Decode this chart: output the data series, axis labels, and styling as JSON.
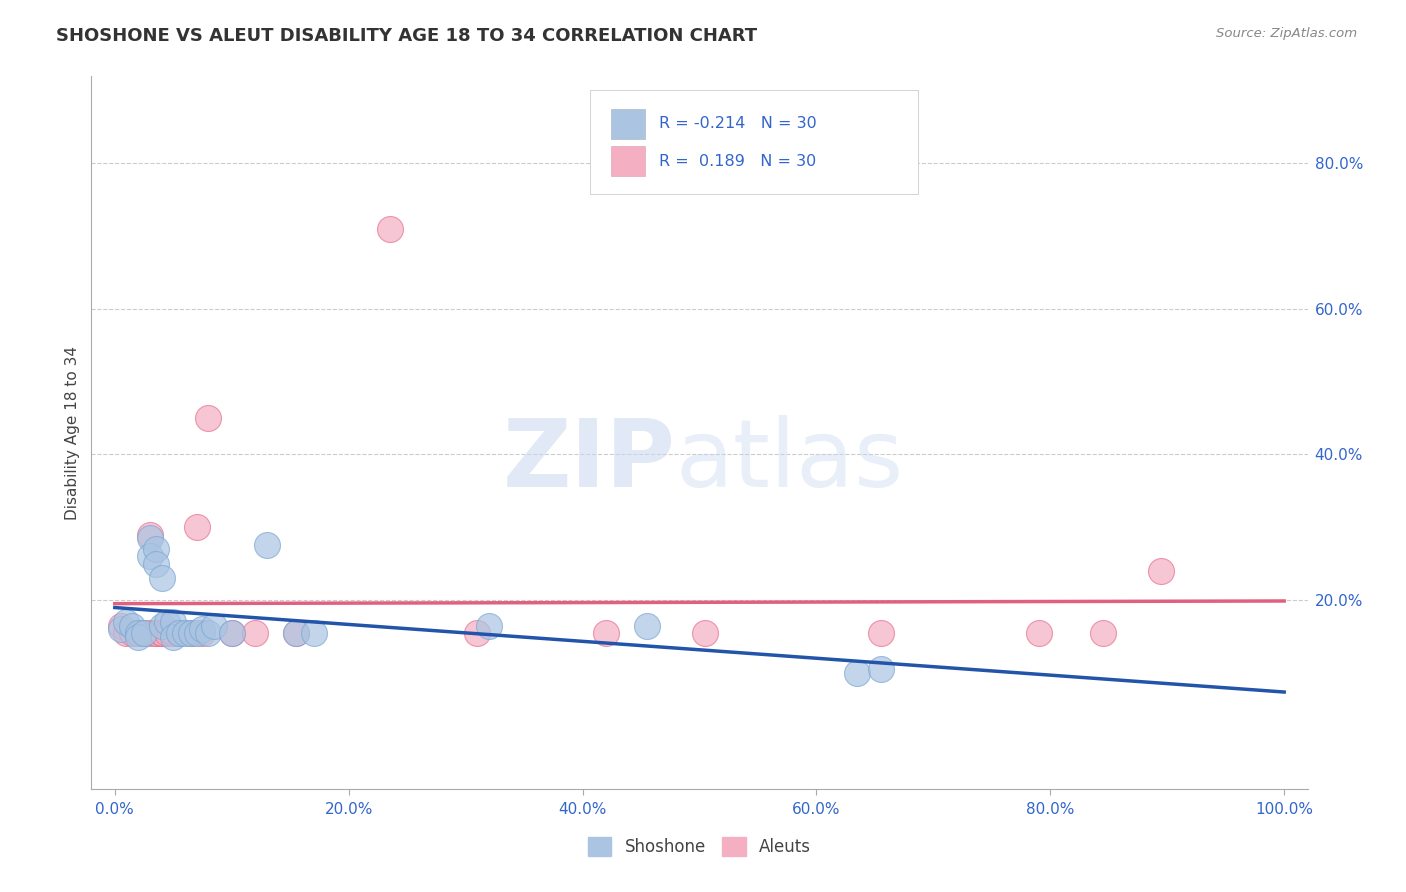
{
  "title": "SHOSHONE VS ALEUT DISABILITY AGE 18 TO 34 CORRELATION CHART",
  "source_text": "Source: ZipAtlas.com",
  "ylabel": "Disability Age 18 to 34",
  "xlim": [
    -0.02,
    1.02
  ],
  "ylim": [
    -0.06,
    0.92
  ],
  "xtick_labels": [
    "0.0%",
    "20.0%",
    "40.0%",
    "60.0%",
    "80.0%",
    "100.0%"
  ],
  "xtick_vals": [
    0.0,
    0.2,
    0.4,
    0.6,
    0.8,
    1.0
  ],
  "ytick_labels": [
    "20.0%",
    "40.0%",
    "60.0%",
    "80.0%"
  ],
  "ytick_vals": [
    0.2,
    0.4,
    0.6,
    0.8
  ],
  "grid_color": "#cccccc",
  "background_color": "#ffffff",
  "shoshone_color": "#aac4e2",
  "aleuts_color": "#f5afc2",
  "shoshone_edge_color": "#7ba8d4",
  "aleuts_edge_color": "#e87090",
  "shoshone_line_color": "#2255aa",
  "aleuts_line_color": "#e06080",
  "watermark_zip": "ZIP",
  "watermark_atlas": "atlas",
  "shoshone_x": [
    0.005,
    0.01,
    0.015,
    0.02,
    0.02,
    0.025,
    0.03,
    0.03,
    0.035,
    0.035,
    0.04,
    0.04,
    0.045,
    0.05,
    0.05,
    0.055,
    0.06,
    0.065,
    0.07,
    0.075,
    0.08,
    0.085,
    0.1,
    0.13,
    0.155,
    0.17,
    0.32,
    0.455,
    0.635,
    0.655
  ],
  "shoshone_y": [
    0.16,
    0.17,
    0.165,
    0.155,
    0.15,
    0.155,
    0.285,
    0.26,
    0.27,
    0.25,
    0.23,
    0.165,
    0.17,
    0.17,
    0.15,
    0.155,
    0.155,
    0.155,
    0.155,
    0.16,
    0.155,
    0.165,
    0.155,
    0.275,
    0.155,
    0.155,
    0.165,
    0.165,
    0.1,
    0.105
  ],
  "aleuts_x": [
    0.005,
    0.01,
    0.015,
    0.02,
    0.025,
    0.03,
    0.03,
    0.035,
    0.035,
    0.04,
    0.04,
    0.04,
    0.045,
    0.05,
    0.055,
    0.065,
    0.07,
    0.075,
    0.08,
    0.1,
    0.12,
    0.155,
    0.235,
    0.31,
    0.42,
    0.505,
    0.655,
    0.79,
    0.845,
    0.895
  ],
  "aleuts_y": [
    0.165,
    0.155,
    0.155,
    0.155,
    0.155,
    0.155,
    0.29,
    0.155,
    0.155,
    0.155,
    0.155,
    0.155,
    0.155,
    0.155,
    0.155,
    0.155,
    0.3,
    0.155,
    0.45,
    0.155,
    0.155,
    0.155,
    0.71,
    0.155,
    0.155,
    0.155,
    0.155,
    0.155,
    0.155,
    0.24
  ],
  "shoshone_R": -0.214,
  "shoshone_N": 30,
  "aleuts_R": 0.189,
  "aleuts_N": 30,
  "legend_label_shoshone": "Shoshone",
  "legend_label_aleuts": "Aleuts"
}
